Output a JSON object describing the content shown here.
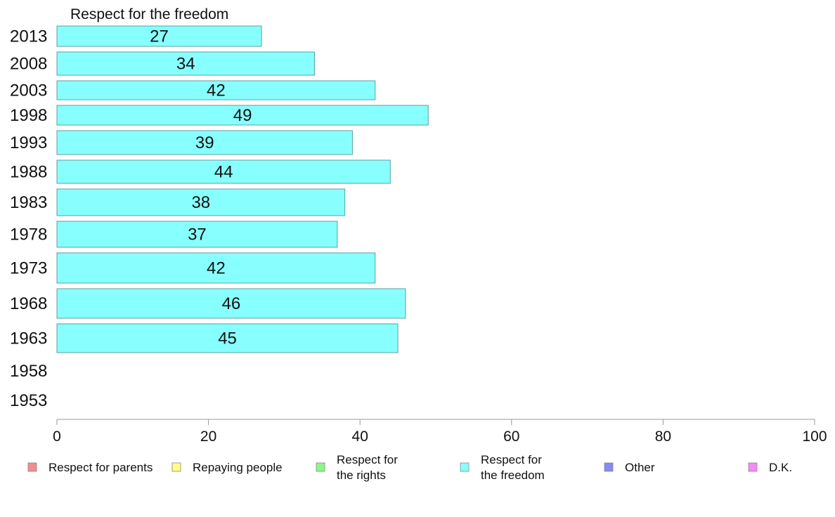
{
  "chart_data": {
    "type": "bar",
    "orientation": "horizontal",
    "title": "Respect for the freedom",
    "categories": [
      "2013",
      "2008",
      "2003",
      "1998",
      "1993",
      "1988",
      "1983",
      "1978",
      "1973",
      "1968",
      "1963",
      "1958",
      "1953"
    ],
    "values": [
      27,
      34,
      42,
      49,
      39,
      44,
      38,
      37,
      42,
      46,
      45,
      null,
      null
    ],
    "xlim": [
      0,
      100
    ],
    "xticks": [
      0,
      20,
      40,
      60,
      80,
      100
    ],
    "xlabel": "",
    "ylabel": "",
    "bar_color": "#88ffff",
    "bar_stroke": "#5f9ea0",
    "grid": false,
    "legend": {
      "placement": "bottom",
      "entries": [
        {
          "label_lines": [
            "Respect for parents"
          ],
          "color": "#f68c8c"
        },
        {
          "label_lines": [
            "Repaying people"
          ],
          "color": "#ffff88"
        },
        {
          "label_lines": [
            "Respect for",
            "the rights"
          ],
          "color": "#88f888"
        },
        {
          "label_lines": [
            "Respect for",
            "the freedom"
          ],
          "color": "#88ffff"
        },
        {
          "label_lines": [
            "Other"
          ],
          "color": "#8888f8"
        },
        {
          "label_lines": [
            "D.K."
          ],
          "color": "#f888f8"
        }
      ]
    }
  }
}
